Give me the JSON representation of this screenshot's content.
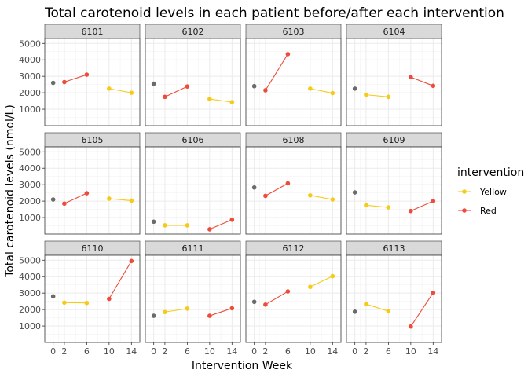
{
  "chart_data": {
    "type": "line",
    "title": "Total carotenoid levels in each patient before/after each intervention",
    "xlabel": "Intervention Week",
    "ylabel": "Total carotenoid levels (nmol/L)",
    "x_ticks": [
      0,
      2,
      6,
      10,
      14
    ],
    "y_ticks": [
      1000,
      2000,
      3000,
      4000,
      5000
    ],
    "xlim": [
      -1.5,
      15.5
    ],
    "ylim": [
      0,
      5300
    ],
    "grid": true,
    "legend": {
      "title": "intervention",
      "position": "right",
      "entries": [
        {
          "name": "Yellow",
          "color": "#F6CB18"
        },
        {
          "name": "Red",
          "color": "#EE4B3A"
        }
      ]
    },
    "baseline_color": "#6B6B6B",
    "panels": [
      {
        "id": "6101",
        "baseline": 2600,
        "yellow": [
          [
            10,
            2250
          ],
          [
            14,
            2000
          ]
        ],
        "red": [
          [
            2,
            2650
          ],
          [
            6,
            3100
          ]
        ]
      },
      {
        "id": "6102",
        "baseline": 2550,
        "yellow": [
          [
            10,
            1620
          ],
          [
            14,
            1430
          ]
        ],
        "red": [
          [
            2,
            1750
          ],
          [
            6,
            2380
          ]
        ]
      },
      {
        "id": "6103",
        "baseline": 2400,
        "yellow": [
          [
            10,
            2250
          ],
          [
            14,
            1980
          ]
        ],
        "red": [
          [
            2,
            2150
          ],
          [
            6,
            4350
          ]
        ]
      },
      {
        "id": "6104",
        "baseline": 2250,
        "yellow": [
          [
            2,
            1880
          ],
          [
            6,
            1750
          ]
        ],
        "red": [
          [
            10,
            2950
          ],
          [
            14,
            2420
          ]
        ]
      },
      {
        "id": "6105",
        "baseline": 2100,
        "yellow": [
          [
            10,
            2150
          ],
          [
            14,
            2030
          ]
        ],
        "red": [
          [
            2,
            1850
          ],
          [
            6,
            2480
          ]
        ]
      },
      {
        "id": "6106",
        "baseline": 750,
        "yellow": [
          [
            2,
            530
          ],
          [
            6,
            530
          ]
        ],
        "red": [
          [
            10,
            290
          ],
          [
            14,
            870
          ]
        ]
      },
      {
        "id": "6108",
        "baseline": 2830,
        "yellow": [
          [
            10,
            2350
          ],
          [
            14,
            2100
          ]
        ],
        "red": [
          [
            2,
            2320
          ],
          [
            6,
            3080
          ]
        ]
      },
      {
        "id": "6109",
        "baseline": 2530,
        "yellow": [
          [
            2,
            1750
          ],
          [
            6,
            1620
          ]
        ],
        "red": [
          [
            10,
            1400
          ],
          [
            14,
            2000
          ]
        ]
      },
      {
        "id": "6110",
        "baseline": 2800,
        "yellow": [
          [
            2,
            2420
          ],
          [
            6,
            2400
          ]
        ],
        "red": [
          [
            10,
            2650
          ],
          [
            14,
            4950
          ]
        ]
      },
      {
        "id": "6111",
        "baseline": 1620,
        "yellow": [
          [
            2,
            1850
          ],
          [
            6,
            2060
          ]
        ],
        "red": [
          [
            10,
            1620
          ],
          [
            14,
            2080
          ]
        ]
      },
      {
        "id": "6112",
        "baseline": 2470,
        "yellow": [
          [
            10,
            3380
          ],
          [
            14,
            4030
          ]
        ],
        "red": [
          [
            2,
            2300
          ],
          [
            6,
            3100
          ]
        ]
      },
      {
        "id": "6113",
        "baseline": 1870,
        "yellow": [
          [
            2,
            2330
          ],
          [
            6,
            1900
          ]
        ],
        "red": [
          [
            10,
            970
          ],
          [
            14,
            3020
          ]
        ]
      }
    ]
  }
}
